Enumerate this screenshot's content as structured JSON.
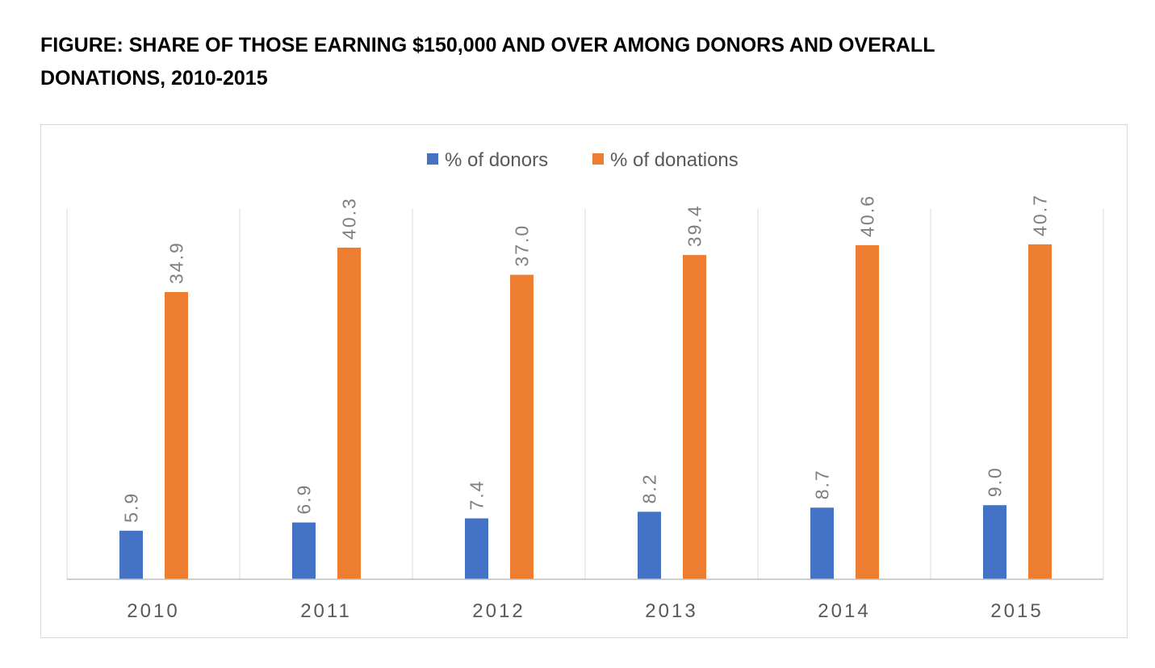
{
  "figure": {
    "title_line1": "FIGURE: SHARE OF THOSE EARNING $150,000 AND OVER AMONG DONORS AND OVERALL",
    "title_line2": "DONATIONS, 2010-2015"
  },
  "colors": {
    "donors": "#4472c4",
    "donations": "#ed7d31",
    "gridline": "#d9d9d9",
    "axis": "#bfbfbf"
  },
  "chart_data": {
    "type": "bar",
    "title": "FIGURE: SHARE OF THOSE EARNING $150,000 AND OVER AMONG DONORS AND OVERALL DONATIONS, 2010-2015",
    "categories": [
      "2010",
      "2011",
      "2012",
      "2013",
      "2014",
      "2015"
    ],
    "series": [
      {
        "name": "% of donors",
        "values": [
          5.9,
          6.9,
          7.4,
          8.2,
          8.7,
          9.0
        ],
        "labels": [
          "5.9",
          "6.9",
          "7.4",
          "8.2",
          "8.7",
          "9.0"
        ]
      },
      {
        "name": "% of donations",
        "values": [
          34.9,
          40.3,
          37.0,
          39.4,
          40.6,
          40.7
        ],
        "labels": [
          "34.9",
          "40.3",
          "37.0",
          "39.4",
          "40.6",
          "40.7"
        ]
      }
    ],
    "xlabel": "",
    "ylabel": "",
    "ylim": [
      0,
      45
    ],
    "legend": "top-center",
    "grid": "vertical separators between categories",
    "data_labels": "rotated, above bars"
  }
}
